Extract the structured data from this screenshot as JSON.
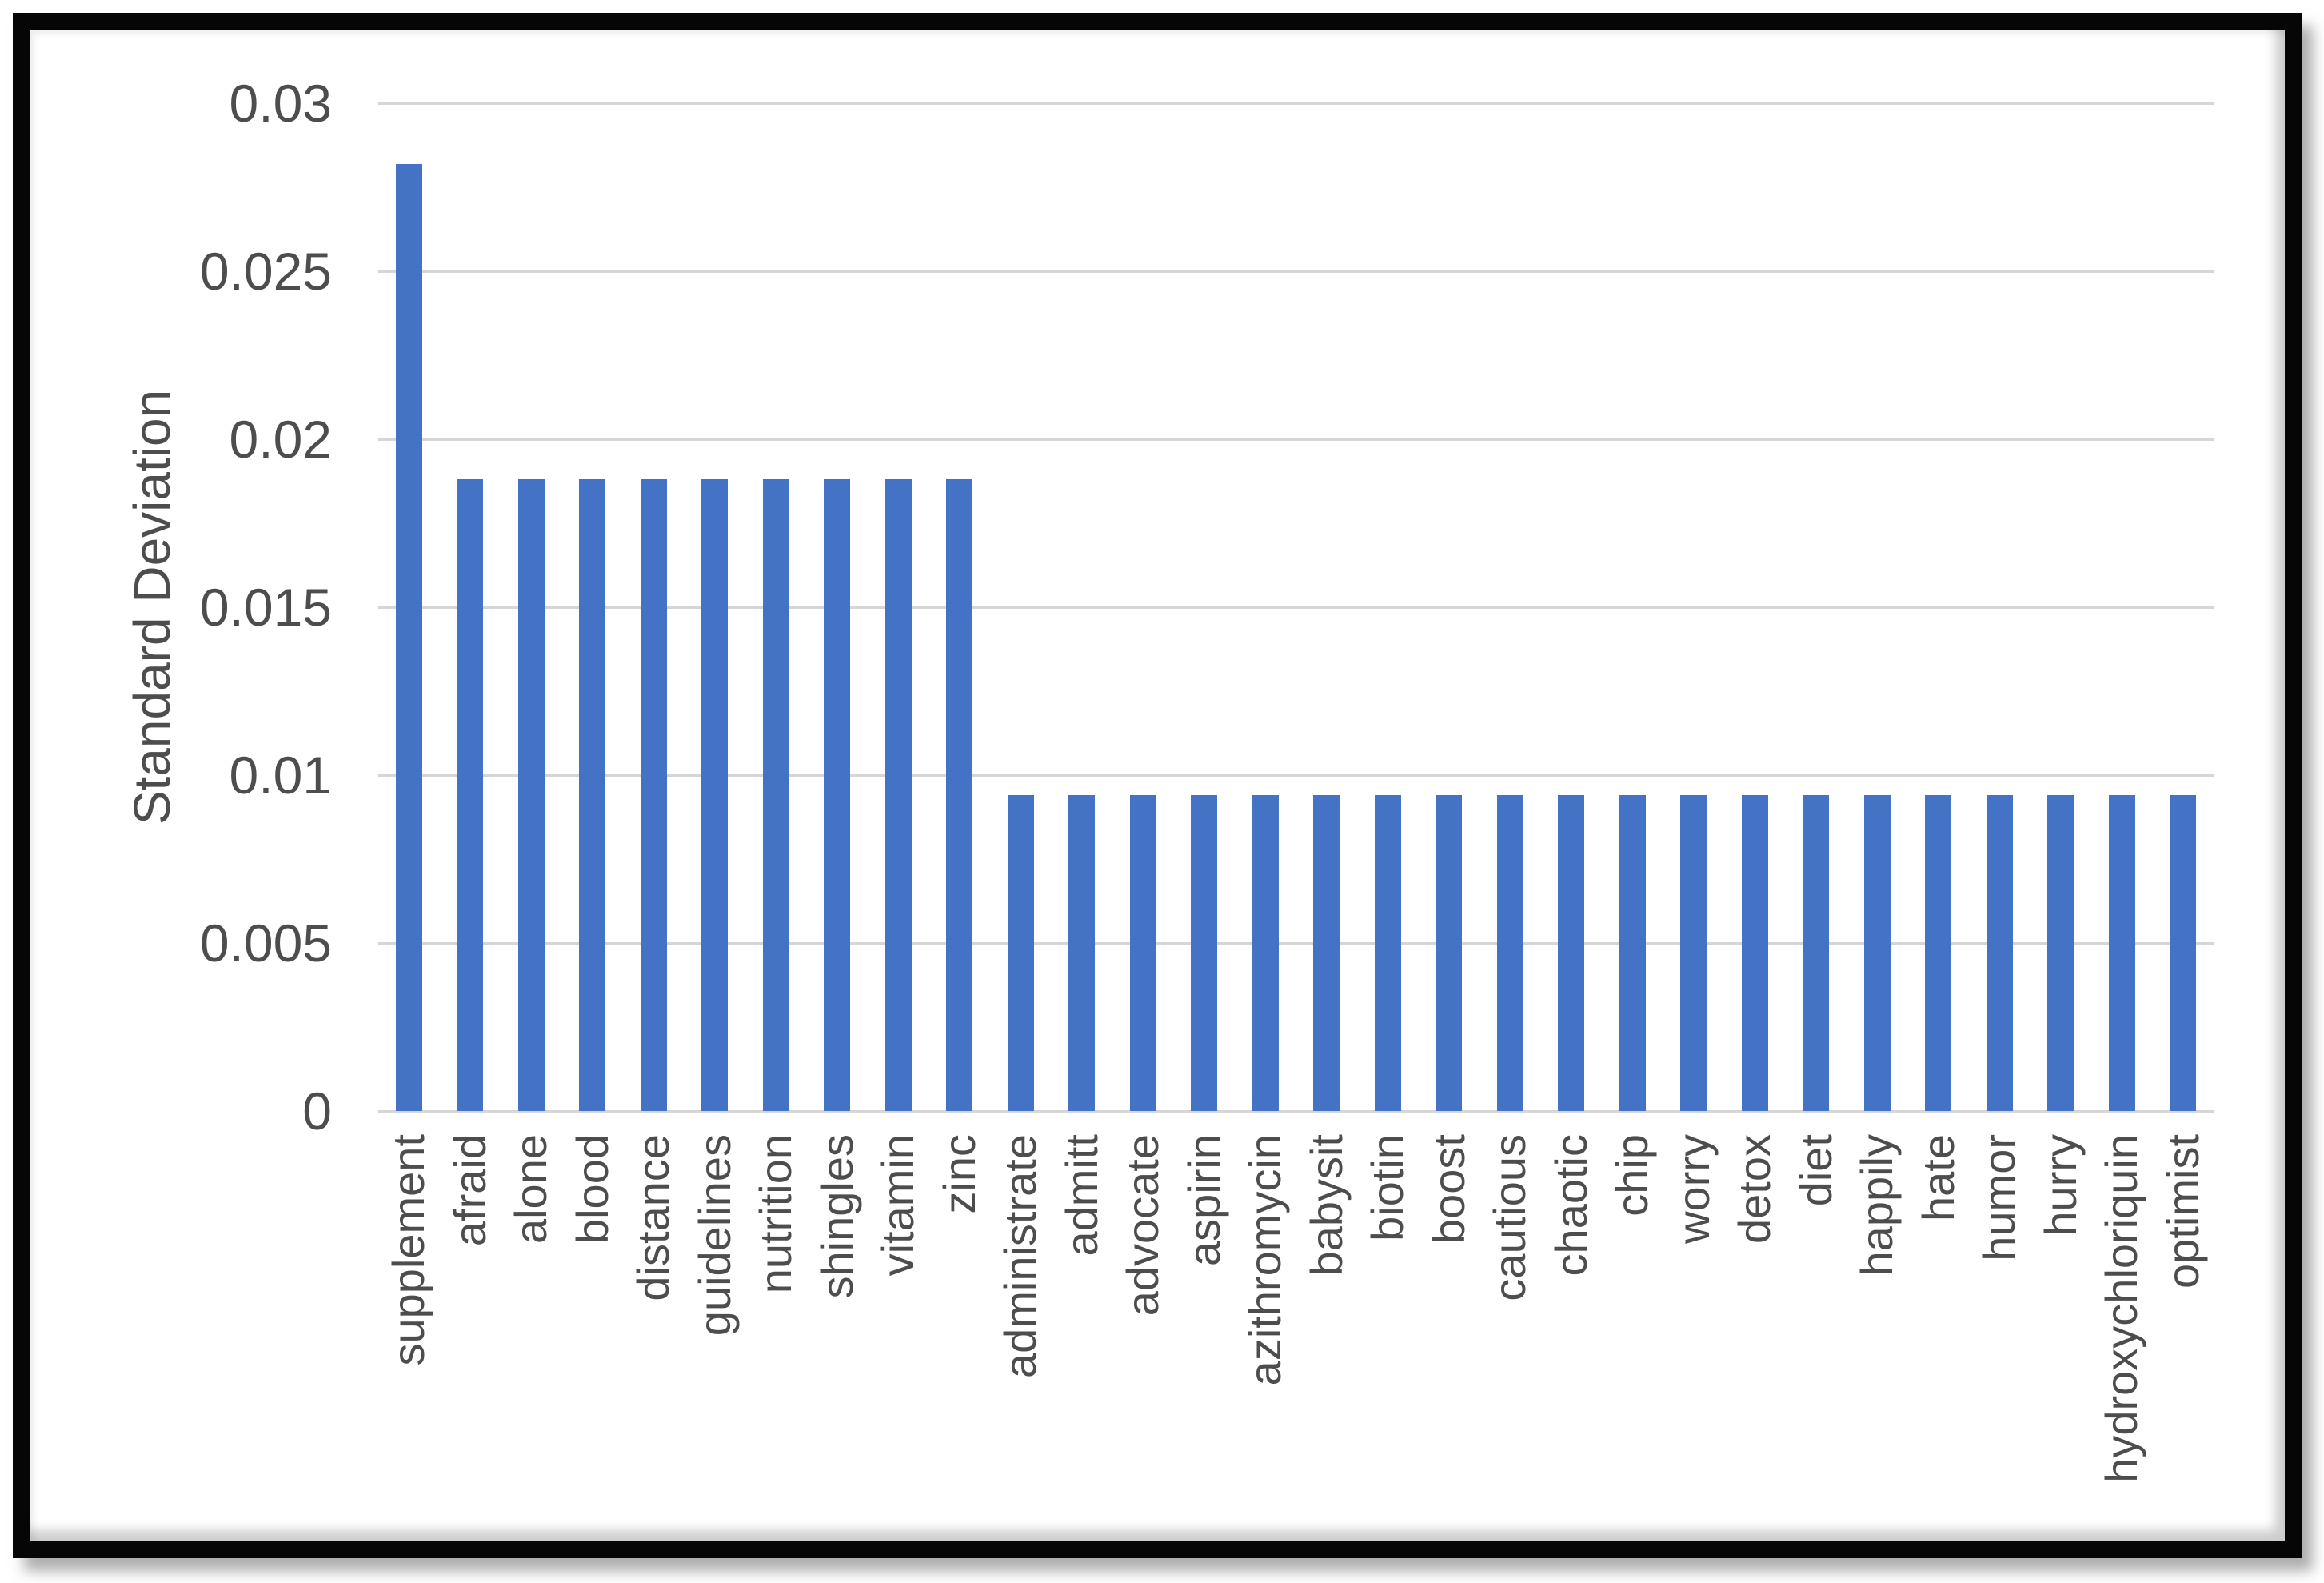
{
  "figure": {
    "description": "Framed bar chart of standard deviation per word",
    "frame_color": "#060606",
    "background_color": "#ffffff"
  },
  "chart_data": {
    "type": "bar",
    "title": "",
    "xlabel": "",
    "ylabel": "Standard Deviation",
    "categories": [
      "supplement",
      "afraid",
      "alone",
      "blood",
      "distance",
      "guidelines",
      "nutrition",
      "shingles",
      "vitamin",
      "zinc",
      "administrate",
      "admitt",
      "advocate",
      "aspirin",
      "azithromycin",
      "babysit",
      "biotin",
      "boost",
      "cautious",
      "chaotic",
      "chip",
      "worry",
      "detox",
      "diet",
      "happily",
      "hate",
      "humor",
      "hurry",
      "hydroxychloriquin",
      "optimist"
    ],
    "values": [
      0.0282,
      0.0188,
      0.0188,
      0.0188,
      0.0188,
      0.0188,
      0.0188,
      0.0188,
      0.0188,
      0.0188,
      0.0094,
      0.0094,
      0.0094,
      0.0094,
      0.0094,
      0.0094,
      0.0094,
      0.0094,
      0.0094,
      0.0094,
      0.0094,
      0.0094,
      0.0094,
      0.0094,
      0.0094,
      0.0094,
      0.0094,
      0.0094,
      0.0094,
      0.0094
    ],
    "ylim": [
      0,
      0.03
    ],
    "yticks": [
      0,
      0.005,
      0.01,
      0.015,
      0.02,
      0.025,
      0.03
    ],
    "ytick_labels": [
      "0",
      "0.005",
      "0.01",
      "0.015",
      "0.02",
      "0.025",
      "0.03"
    ],
    "grid": true,
    "legend_position": "none",
    "bar_color": "#4472C4",
    "gridline_color": "#d6d6d6",
    "axis_text_color": "#4d4d4d"
  }
}
